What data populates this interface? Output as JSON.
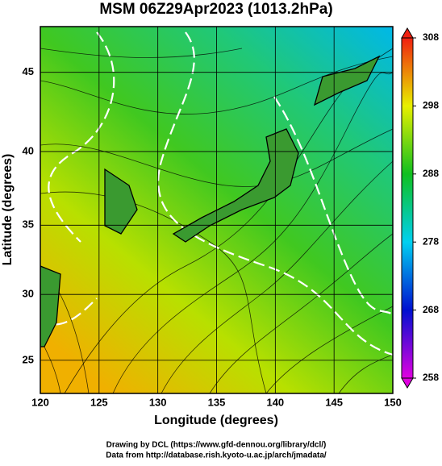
{
  "chart_data": {
    "type": "map",
    "title": "MSM 06Z29Apr2023 (1013.2hPa)",
    "x_label": "Longitude (degrees)",
    "y_label": "Latitude  (degrees)",
    "xlim": [
      120,
      150
    ],
    "xticks": [
      120,
      125,
      130,
      135,
      140,
      145,
      150
    ],
    "ylim": [
      22.4,
      47.7
    ],
    "yticks": [
      25,
      30,
      35,
      40,
      45
    ],
    "y_scale": "mercator",
    "grid": true,
    "colorbar": {
      "lim": [
        258,
        308
      ],
      "ticks": [
        258,
        268,
        278,
        288,
        298,
        308
      ],
      "colors": [
        "#e000e0",
        "#0010d0",
        "#00d0f0",
        "#10c020",
        "#e8f000",
        "#f02010"
      ]
    },
    "footer": [
      "Drawing by DCL (https://www.gfd-dennou.org/library/dcl/)",
      "Data from http://database.rish.kyoto-u.ac.jp/arch/jmadata/"
    ]
  }
}
